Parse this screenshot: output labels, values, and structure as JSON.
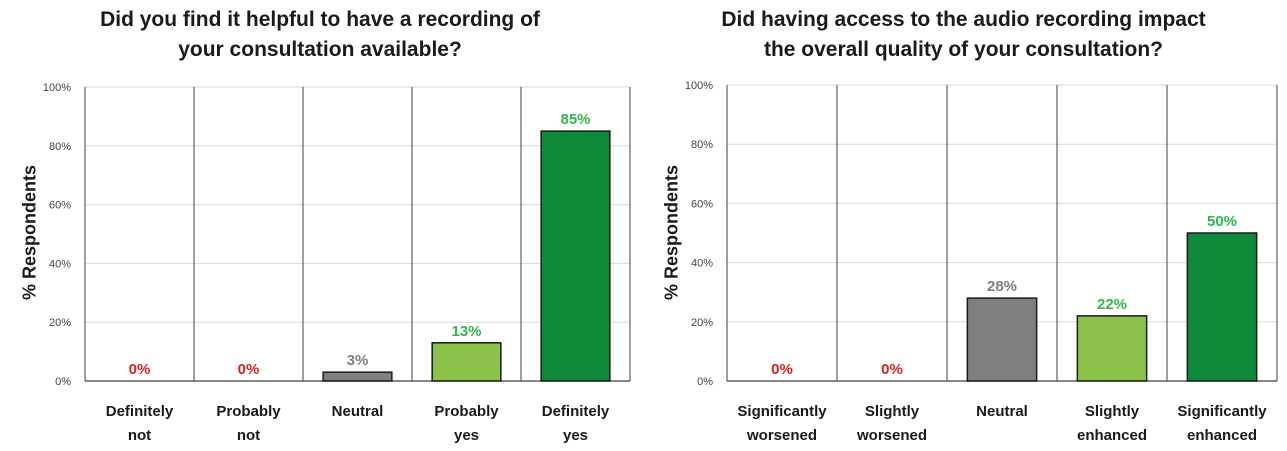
{
  "colors": {
    "red_label": "#d9231e",
    "gray_label": "#7f7f7f",
    "green_label": "#2fb94a",
    "gray_bar": "#7f7f7f",
    "light_green_bar": "#8bc34a",
    "dark_green_bar": "#0e8a3a",
    "grid": "#d9d9d9",
    "axis": "#404040"
  },
  "chart_data": [
    {
      "type": "bar",
      "title_lines": [
        "Did you find it helpful to have a recording of",
        "your consultation available?"
      ],
      "ylabel": "% Respondents",
      "xlabel": "",
      "ylim": [
        0,
        100
      ],
      "yticks": [
        "0%",
        "20%",
        "40%",
        "60%",
        "80%",
        "100%"
      ],
      "categories": [
        [
          "Definitely",
          "not"
        ],
        [
          "Probably",
          "not"
        ],
        [
          "Neutral"
        ],
        [
          "Probably",
          "yes"
        ],
        [
          "Definitely",
          "yes"
        ]
      ],
      "values": [
        0,
        0,
        3,
        13,
        85
      ],
      "data_labels": [
        "0%",
        "0%",
        "3%",
        "13%",
        "85%"
      ],
      "bar_colors": [
        "#d9231e",
        "#d9231e",
        "#7f7f7f",
        "#8bc34a",
        "#0e8a3a"
      ],
      "label_colors": [
        "#d9231e",
        "#d9231e",
        "#7f7f7f",
        "#2fb94a",
        "#2fb94a"
      ],
      "grid": true,
      "legend": "none"
    },
    {
      "type": "bar",
      "title_lines": [
        "Did having access to the audio recording impact",
        "the overall quality of your consultation?"
      ],
      "ylabel": "% Respondents",
      "xlabel": "",
      "ylim": [
        0,
        100
      ],
      "yticks": [
        "0%",
        "20%",
        "40%",
        "60%",
        "80%",
        "100%"
      ],
      "categories": [
        [
          "Significantly",
          "worsened"
        ],
        [
          "Slightly",
          "worsened"
        ],
        [
          "Neutral"
        ],
        [
          "Slightly",
          "enhanced"
        ],
        [
          "Significantly",
          "enhanced"
        ]
      ],
      "values": [
        0,
        0,
        28,
        22,
        50
      ],
      "data_labels": [
        "0%",
        "0%",
        "28%",
        "22%",
        "50%"
      ],
      "bar_colors": [
        "#d9231e",
        "#d9231e",
        "#7f7f7f",
        "#8bc34a",
        "#0e8a3a"
      ],
      "label_colors": [
        "#d9231e",
        "#d9231e",
        "#7f7f7f",
        "#2fb94a",
        "#2fb94a"
      ],
      "grid": true,
      "legend": "none"
    }
  ]
}
